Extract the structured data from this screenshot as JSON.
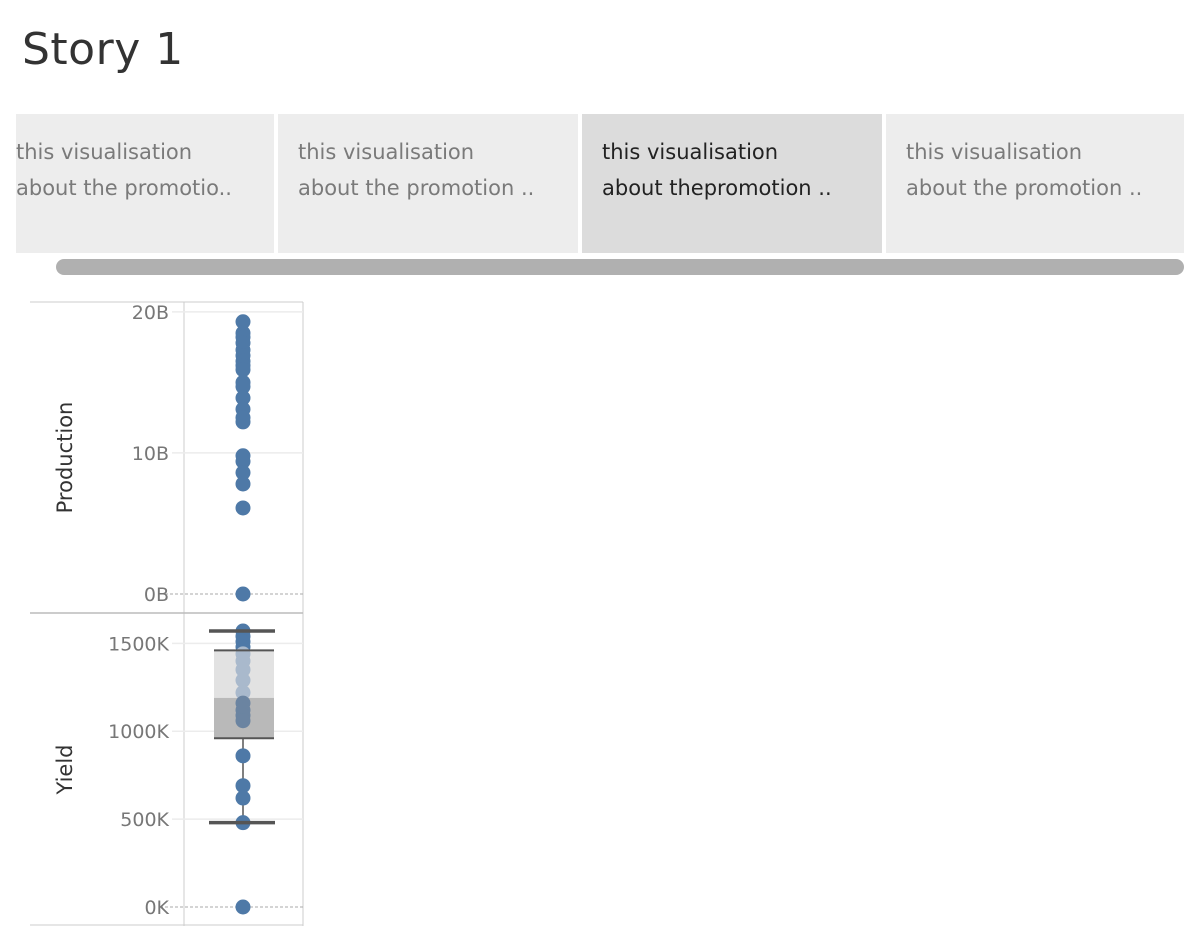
{
  "story": {
    "title": "Story 1"
  },
  "navigator": {
    "tabs": [
      {
        "line1": "this visualisation",
        "line2": "about the promotio..",
        "active": false
      },
      {
        "line1": "this visualisation",
        "line2": "about the promotion ..",
        "active": false
      },
      {
        "line1": "this visualisation",
        "line2": "about thepromotion ..",
        "active": true
      },
      {
        "line1": "this visualisation",
        "line2": "about the promotion ..",
        "active": false
      }
    ]
  },
  "colors": {
    "mark": "#4e79a7",
    "box_upper": "#e2e2e2",
    "box_lower": "#b9b9b9",
    "whisker": "#555555",
    "divider": "#cccccc",
    "grid": "#ececec",
    "tab_bg": "#ededed",
    "tab_active_bg": "#dcdcdc",
    "scrollbar": "#b0b0b0"
  },
  "chart_data": [
    {
      "type": "scatter",
      "ylabel": "Production",
      "ylim": [
        0,
        20700000000
      ],
      "yticks": [
        {
          "value": 0,
          "label": "0B"
        },
        {
          "value": 10000000000,
          "label": "10B"
        },
        {
          "value": 20000000000,
          "label": "20B"
        }
      ],
      "values": [
        19300000000,
        18500000000,
        18200000000,
        17800000000,
        17300000000,
        16900000000,
        16500000000,
        16200000000,
        15900000000,
        15000000000,
        14700000000,
        13900000000,
        13100000000,
        12500000000,
        12200000000,
        9800000000,
        9400000000,
        8600000000,
        7800000000,
        6100000000,
        0
      ],
      "grid": true
    },
    {
      "type": "scatter",
      "ylabel": "Yield",
      "ylim": [
        0,
        1650000
      ],
      "yticks": [
        {
          "value": 0,
          "label": "0K"
        },
        {
          "value": 500000,
          "label": "500K"
        },
        {
          "value": 1000000,
          "label": "1000K"
        },
        {
          "value": 1500000,
          "label": "1500K"
        }
      ],
      "values": [
        1570000,
        1540000,
        1510000,
        1480000,
        1440000,
        1400000,
        1350000,
        1290000,
        1220000,
        1160000,
        1120000,
        1090000,
        1060000,
        860000,
        690000,
        620000,
        480000,
        0
      ],
      "boxplot": {
        "whisker_low": 480000,
        "q1": 960000,
        "median": 1190000,
        "q3": 1460000,
        "whisker_high": 1570000
      },
      "grid": true
    }
  ]
}
